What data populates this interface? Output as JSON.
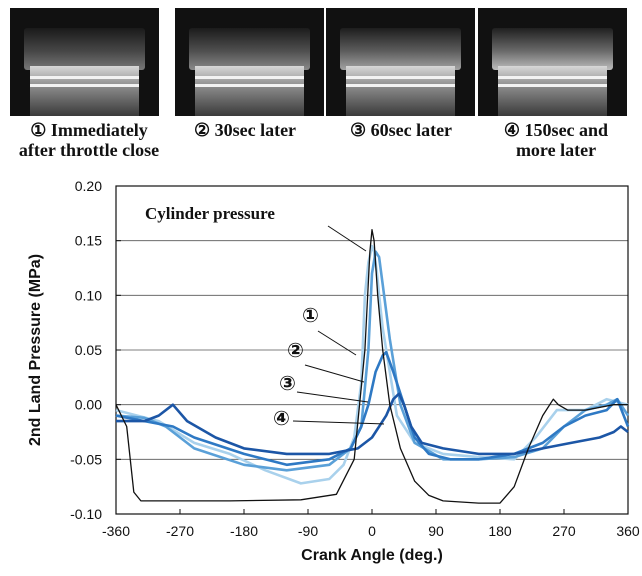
{
  "photos": [
    {
      "caption_line1": "① Immediately",
      "caption_line2": "after throttle close"
    },
    {
      "caption_line1": "② 30sec later",
      "caption_line2": ""
    },
    {
      "caption_line1": "③ 60sec later",
      "caption_line2": ""
    },
    {
      "caption_line1": "④ 150sec and",
      "caption_line2": "more later"
    }
  ],
  "chart_data": {
    "type": "line",
    "title": "",
    "xlabel": "Crank Angle (deg.)",
    "ylabel": "2nd Land Pressure (MPa)",
    "xlim": [
      -360,
      360
    ],
    "ylim": [
      -0.1,
      0.2
    ],
    "xticks": [
      "-360",
      "-270",
      "-180",
      "-90",
      "0",
      "90",
      "180",
      "270",
      "360"
    ],
    "yticks": [
      "-0.10",
      "-0.05",
      "0.00",
      "0.05",
      "0.10",
      "0.15",
      "0.20"
    ],
    "grid": "horizontal",
    "annotations": [
      "Cylinder pressure",
      "①",
      "②",
      "③",
      "④"
    ],
    "series": [
      {
        "name": "Cylinder pressure",
        "color": "#111111",
        "x": [
          -360,
          -345,
          -335,
          -325,
          -300,
          -200,
          -100,
          -50,
          -25,
          -10,
          -3,
          0,
          3,
          8,
          15,
          25,
          40,
          60,
          80,
          100,
          150,
          180,
          200,
          220,
          240,
          255,
          262,
          275,
          300,
          340,
          360
        ],
        "y": [
          0.0,
          -0.02,
          -0.08,
          -0.088,
          -0.088,
          -0.088,
          -0.087,
          -0.082,
          -0.05,
          0.05,
          0.14,
          0.16,
          0.15,
          0.1,
          0.05,
          0.0,
          -0.04,
          -0.07,
          -0.083,
          -0.088,
          -0.09,
          -0.09,
          -0.075,
          -0.04,
          -0.01,
          0.005,
          0.0,
          -0.005,
          -0.005,
          0.0,
          0.0
        ]
      },
      {
        "name": "①",
        "color": "#a9d1ec",
        "x": [
          -360,
          -330,
          -300,
          -250,
          -200,
          -150,
          -100,
          -60,
          -40,
          -25,
          -15,
          -10,
          -5,
          0,
          3,
          7,
          10,
          15,
          25,
          35,
          60,
          100,
          150,
          200,
          230,
          260,
          300,
          330,
          360
        ],
        "y": [
          -0.005,
          -0.01,
          -0.015,
          -0.035,
          -0.045,
          -0.06,
          -0.072,
          -0.068,
          -0.055,
          -0.03,
          0.02,
          0.1,
          0.13,
          0.145,
          0.14,
          0.12,
          0.1,
          0.07,
          0.03,
          -0.01,
          -0.035,
          -0.045,
          -0.048,
          -0.05,
          -0.03,
          -0.005,
          -0.005,
          0.005,
          0.0
        ]
      },
      {
        "name": "②",
        "color": "#5aa0d8",
        "x": [
          -360,
          -320,
          -290,
          -250,
          -180,
          -120,
          -60,
          -30,
          -15,
          -5,
          0,
          5,
          10,
          15,
          25,
          40,
          60,
          100,
          150,
          200,
          240,
          270,
          300,
          330,
          345,
          360
        ],
        "y": [
          -0.01,
          -0.012,
          -0.02,
          -0.04,
          -0.055,
          -0.06,
          -0.055,
          -0.04,
          -0.02,
          0.05,
          0.12,
          0.14,
          0.135,
          0.11,
          0.06,
          0.0,
          -0.035,
          -0.05,
          -0.05,
          -0.048,
          -0.04,
          -0.02,
          -0.005,
          0.0,
          0.005,
          -0.01
        ]
      },
      {
        "name": "③",
        "color": "#2e79c4",
        "x": [
          -360,
          -320,
          -280,
          -250,
          -180,
          -120,
          -60,
          -30,
          -15,
          -5,
          5,
          15,
          20,
          30,
          45,
          60,
          80,
          110,
          150,
          200,
          240,
          270,
          300,
          330,
          345,
          360
        ],
        "y": [
          -0.01,
          -0.015,
          -0.02,
          -0.03,
          -0.045,
          -0.055,
          -0.05,
          -0.04,
          -0.02,
          0.0,
          0.03,
          0.045,
          0.048,
          0.03,
          0.0,
          -0.03,
          -0.045,
          -0.05,
          -0.05,
          -0.045,
          -0.035,
          -0.02,
          -0.01,
          -0.005,
          0.005,
          -0.02
        ]
      },
      {
        "name": "④",
        "color": "#1c56a6",
        "x": [
          -360,
          -320,
          -300,
          -280,
          -260,
          -220,
          -180,
          -120,
          -60,
          -20,
          0,
          20,
          30,
          38,
          45,
          55,
          70,
          100,
          150,
          200,
          240,
          280,
          320,
          340,
          350,
          360
        ],
        "y": [
          -0.015,
          -0.015,
          -0.01,
          0.0,
          -0.015,
          -0.03,
          -0.04,
          -0.045,
          -0.045,
          -0.04,
          -0.03,
          -0.01,
          0.005,
          0.01,
          0.0,
          -0.02,
          -0.035,
          -0.04,
          -0.045,
          -0.045,
          -0.04,
          -0.035,
          -0.03,
          -0.025,
          -0.02,
          -0.025
        ]
      }
    ]
  }
}
